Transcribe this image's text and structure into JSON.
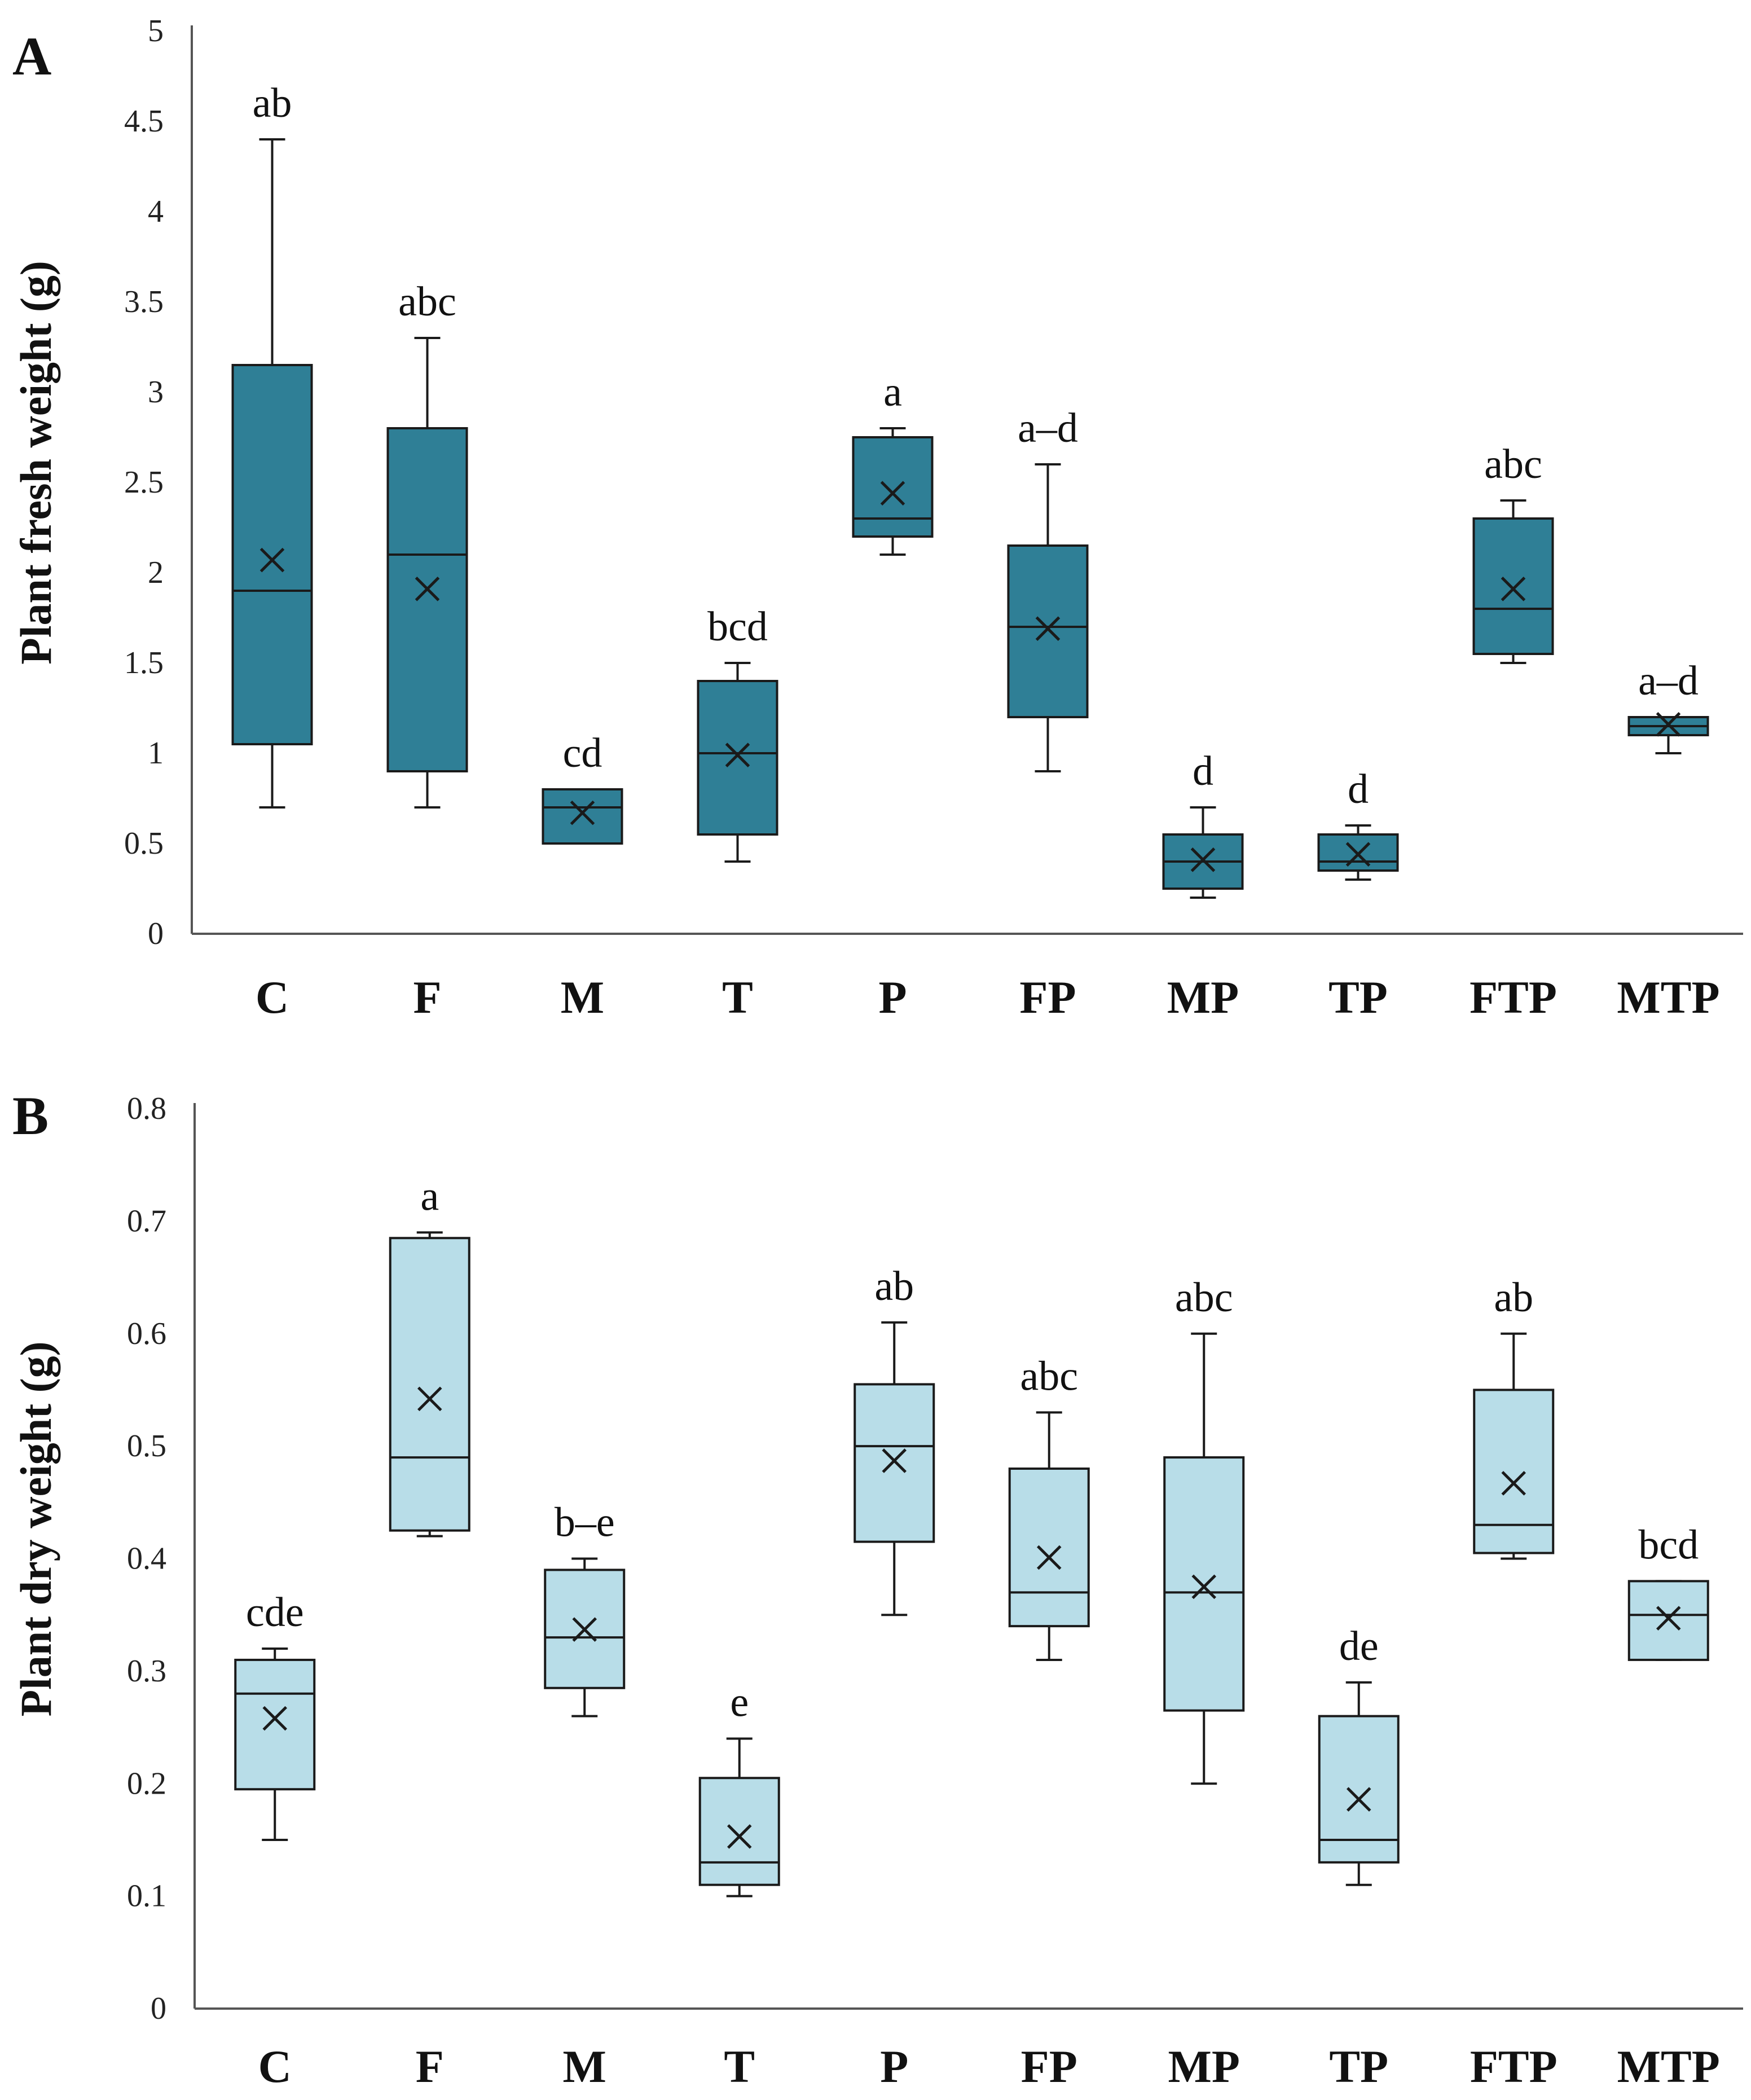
{
  "chart_data": [
    {
      "type": "box",
      "panel": "A",
      "ylabel": "Plant fresh weight (g)",
      "ylim": [
        0,
        5
      ],
      "yticks": [
        "0",
        "0.5",
        "1",
        "1.5",
        "2",
        "2.5",
        "3",
        "3.5",
        "4",
        "4.5",
        "5"
      ],
      "categories": [
        "C",
        "F",
        "M",
        "T",
        "P",
        "FP",
        "MP",
        "TP",
        "FTP",
        "MTP"
      ],
      "fill_color": "#2f7f96",
      "series": [
        {
          "category": "C",
          "min": 0.7,
          "q1": 1.05,
          "median": 1.9,
          "q3": 3.15,
          "max": 4.4,
          "mean": 2.07,
          "letters": "ab"
        },
        {
          "category": "F",
          "min": 0.7,
          "q1": 0.9,
          "median": 2.1,
          "q3": 2.8,
          "max": 3.3,
          "mean": 1.91,
          "letters": "abc"
        },
        {
          "category": "M",
          "min": 0.5,
          "q1": 0.5,
          "median": 0.7,
          "q3": 0.8,
          "max": 0.8,
          "mean": 0.67,
          "letters": "cd"
        },
        {
          "category": "T",
          "min": 0.4,
          "q1": 0.55,
          "median": 1.0,
          "q3": 1.4,
          "max": 1.5,
          "mean": 0.99,
          "letters": "bcd"
        },
        {
          "category": "P",
          "min": 2.1,
          "q1": 2.2,
          "median": 2.3,
          "q3": 2.75,
          "max": 2.8,
          "mean": 2.44,
          "letters": "a"
        },
        {
          "category": "FP",
          "min": 0.9,
          "q1": 1.2,
          "median": 1.7,
          "q3": 2.15,
          "max": 2.6,
          "mean": 1.69,
          "letters": "a–d"
        },
        {
          "category": "MP",
          "min": 0.2,
          "q1": 0.25,
          "median": 0.4,
          "q3": 0.55,
          "max": 0.7,
          "mean": 0.41,
          "letters": "d"
        },
        {
          "category": "TP",
          "min": 0.3,
          "q1": 0.35,
          "median": 0.4,
          "q3": 0.55,
          "max": 0.6,
          "mean": 0.44,
          "letters": "d"
        },
        {
          "category": "FTP",
          "min": 1.5,
          "q1": 1.55,
          "median": 1.8,
          "q3": 2.3,
          "max": 2.4,
          "mean": 1.91,
          "letters": "abc"
        },
        {
          "category": "MTP",
          "min": 1.0,
          "q1": 1.1,
          "median": 1.15,
          "q3": 1.2,
          "max": 1.2,
          "mean": 1.16,
          "letters": "a–d"
        }
      ]
    },
    {
      "type": "box",
      "panel": "B",
      "ylabel": "Plant dry weight (g)",
      "ylim": [
        0,
        0.8
      ],
      "yticks": [
        "0",
        "0.1",
        "0.2",
        "0.3",
        "0.4",
        "0.5",
        "0.6",
        "0.7",
        "0.8"
      ],
      "categories": [
        "C",
        "F",
        "M",
        "T",
        "P",
        "FP",
        "MP",
        "TP",
        "FTP",
        "MTP"
      ],
      "fill_color": "#b8dde8",
      "series": [
        {
          "category": "C",
          "min": 0.15,
          "q1": 0.195,
          "median": 0.28,
          "q3": 0.31,
          "max": 0.32,
          "mean": 0.258,
          "letters": "cde"
        },
        {
          "category": "F",
          "min": 0.42,
          "q1": 0.425,
          "median": 0.49,
          "q3": 0.685,
          "max": 0.69,
          "mean": 0.542,
          "letters": "a"
        },
        {
          "category": "M",
          "min": 0.26,
          "q1": 0.285,
          "median": 0.33,
          "q3": 0.39,
          "max": 0.4,
          "mean": 0.337,
          "letters": "b–e"
        },
        {
          "category": "T",
          "min": 0.1,
          "q1": 0.11,
          "median": 0.13,
          "q3": 0.205,
          "max": 0.24,
          "mean": 0.153,
          "letters": "e"
        },
        {
          "category": "P",
          "min": 0.35,
          "q1": 0.415,
          "median": 0.5,
          "q3": 0.555,
          "max": 0.61,
          "mean": 0.487,
          "letters": "ab"
        },
        {
          "category": "FP",
          "min": 0.31,
          "q1": 0.34,
          "median": 0.37,
          "q3": 0.48,
          "max": 0.53,
          "mean": 0.401,
          "letters": "abc"
        },
        {
          "category": "MP",
          "min": 0.2,
          "q1": 0.265,
          "median": 0.37,
          "q3": 0.49,
          "max": 0.6,
          "mean": 0.375,
          "letters": "abc"
        },
        {
          "category": "TP",
          "min": 0.11,
          "q1": 0.13,
          "median": 0.15,
          "q3": 0.26,
          "max": 0.29,
          "mean": 0.186,
          "letters": "de"
        },
        {
          "category": "FTP",
          "min": 0.4,
          "q1": 0.405,
          "median": 0.43,
          "q3": 0.55,
          "max": 0.6,
          "mean": 0.467,
          "letters": "ab"
        },
        {
          "category": "MTP",
          "min": 0.31,
          "q1": 0.31,
          "median": 0.35,
          "q3": 0.38,
          "max": 0.38,
          "mean": 0.347,
          "letters": "bcd"
        }
      ]
    }
  ]
}
